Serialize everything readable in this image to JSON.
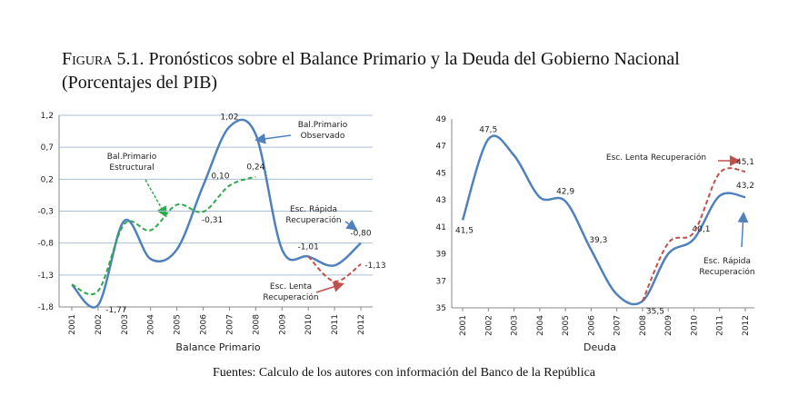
{
  "caption": "Figura 5.1. Pronósticos sobre el Balance Primario y la Deuda del Gobierno Nacional (Porcentajes del PIB)",
  "source": "Fuentes: Calculo de los autores con información del Banco de la República",
  "chart_data": [
    {
      "type": "line",
      "x_title": "Balance Primario",
      "categories": [
        "2001",
        "2002",
        "2003",
        "2004",
        "2005",
        "2006",
        "2007",
        "2008",
        "2009",
        "2010",
        "2011",
        "2012"
      ],
      "ylim": [
        -1.8,
        1.2
      ],
      "yticks": [
        {
          "value": -1.8,
          "label": "-1,8"
        },
        {
          "value": -1.3,
          "label": "-1,3"
        },
        {
          "value": -0.8,
          "label": "-0,8"
        },
        {
          "value": -0.3,
          "label": "-0,3"
        },
        {
          "value": 0.2,
          "label": "0,2"
        },
        {
          "value": 0.7,
          "label": "0,7"
        },
        {
          "value": 1.2,
          "label": "1,2"
        }
      ],
      "grid": true,
      "series": [
        {
          "color": "#4f81bd",
          "dash": false,
          "values": [
            -1.45,
            -1.77,
            -0.45,
            -1.05,
            -0.9,
            0.1,
            1.02,
            0.9,
            -0.9,
            -1.01,
            -1.15,
            -0.8
          ],
          "value_labels": [
            null,
            "-1,77",
            null,
            null,
            null,
            null,
            "1,02",
            null,
            null,
            "-1,01",
            null,
            "-0,80"
          ]
        },
        {
          "color": "#2eaa4a",
          "dash": true,
          "values": [
            -1.45,
            -1.55,
            -0.5,
            -0.6,
            -0.2,
            -0.31,
            0.1,
            0.24,
            null,
            null,
            null,
            null
          ],
          "value_labels": [
            null,
            null,
            null,
            null,
            null,
            "-0,31",
            "0,10",
            "0,24",
            null,
            null,
            null,
            null
          ]
        },
        {
          "color": "#c0504d",
          "dash": true,
          "values": [
            null,
            null,
            null,
            null,
            null,
            null,
            null,
            null,
            null,
            -1.01,
            -1.4,
            -1.13
          ],
          "value_labels": [
            null,
            null,
            null,
            null,
            null,
            null,
            null,
            null,
            null,
            null,
            null,
            "-1,13"
          ]
        }
      ],
      "annotations": [
        {
          "lines": [
            "Bal.Primario",
            "Observado"
          ]
        },
        {
          "lines": [
            "Bal.Primario",
            "Estructural"
          ]
        },
        {
          "lines": [
            "Esc. Rápida",
            "Recuperación"
          ]
        },
        {
          "lines": [
            "Esc. Lenta",
            "Recuperación"
          ]
        }
      ]
    },
    {
      "type": "line",
      "x_title": "Deuda",
      "categories": [
        "2001",
        "2002",
        "2003",
        "2004",
        "2005",
        "2006",
        "2007",
        "2008",
        "2009",
        "2010",
        "2011",
        "2012"
      ],
      "ylim": [
        35,
        49
      ],
      "yticks": [
        35,
        37,
        39,
        41,
        43,
        45,
        47,
        49
      ],
      "grid": false,
      "series": [
        {
          "color": "#4f81bd",
          "dash": false,
          "values": [
            41.5,
            47.5,
            46.3,
            43.2,
            42.9,
            39.3,
            36.0,
            35.5,
            39.0,
            40.1,
            43.3,
            43.2
          ],
          "value_labels": [
            "41,5",
            "47,5",
            null,
            null,
            "42,9",
            "39,3",
            null,
            "35,5",
            null,
            "40,1",
            null,
            "43,2"
          ]
        },
        {
          "color": "#c0504d",
          "dash": true,
          "values": [
            null,
            null,
            null,
            null,
            null,
            null,
            null,
            35.5,
            39.8,
            40.6,
            45.0,
            45.1
          ],
          "value_labels": [
            null,
            null,
            null,
            null,
            null,
            null,
            null,
            null,
            null,
            null,
            null,
            "45,1"
          ]
        }
      ],
      "annotations": [
        {
          "lines": [
            "Esc. Lenta Recuperación"
          ]
        },
        {
          "lines": [
            "Esc. Rápida",
            "Recuperación"
          ]
        }
      ]
    }
  ]
}
